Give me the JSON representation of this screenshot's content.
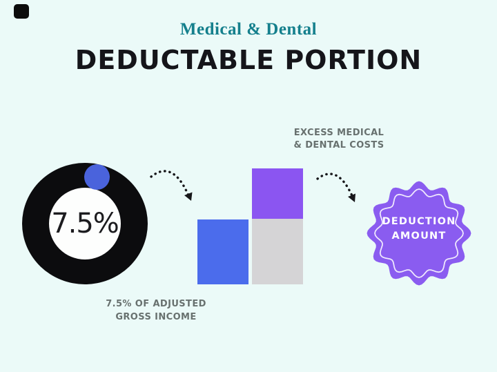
{
  "header": {
    "eyebrow": "Medical & Dental",
    "title": "DEDUCTABLE PORTION"
  },
  "donut": {
    "percent_value": 7.5,
    "percent_label": "7.5%",
    "caption_line1": "7.5% OF ADJUSTED",
    "caption_line2": "GROSS INCOME"
  },
  "bars": {
    "label_line1": "EXCESS MEDICAL",
    "label_line2": "& DENTAL COSTS"
  },
  "badge": {
    "line1": "DEDUCTION",
    "line2": "AMOUNT"
  },
  "colors": {
    "background": "#ebfaf8",
    "eyebrow_teal": "#15808d",
    "title_black": "#15151a",
    "ring_black": "#0c0c0e",
    "marker_blue": "#4a63dc",
    "bar_blue": "#4b6cec",
    "bar_purple": "#8b55f1",
    "bar_gray": "#d5d4d6",
    "badge_purple": "#8a5cf0",
    "badge_text": "#ffffff",
    "caption_gray": "#68716f",
    "logo_black": "#0c0c0c",
    "arrow_black": "#17171a"
  }
}
